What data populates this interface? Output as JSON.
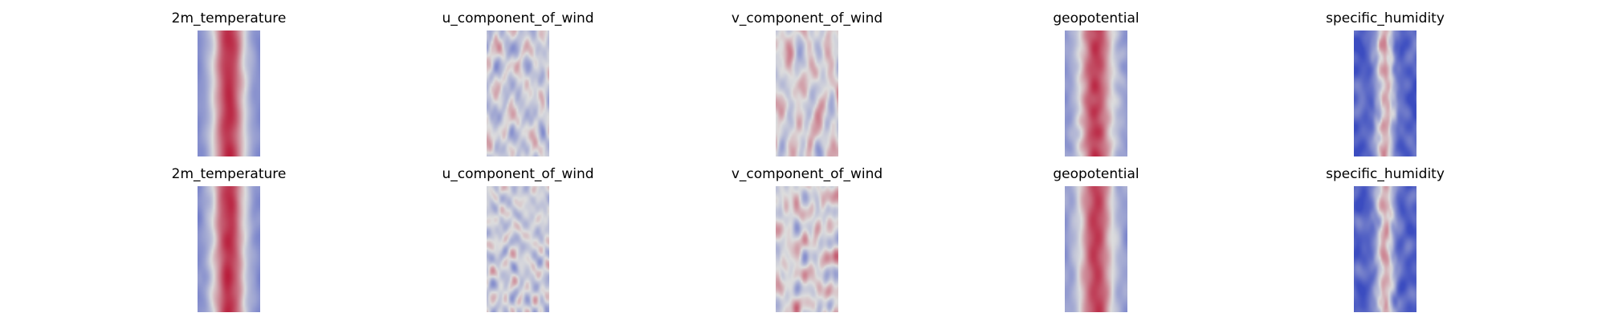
{
  "chart_data": {
    "type": "heatmap",
    "colormap": "coolwarm",
    "colors": {
      "low": "#3b4cc0",
      "mid": "#dddddd",
      "high": "#b40426"
    },
    "axes_visible": false,
    "grid": false,
    "layout": {
      "rows": 2,
      "columns": 5
    },
    "panels": [
      {
        "title": "2m_temperature",
        "field": "temperature",
        "seed": 11
      },
      {
        "title": "u_component_of_wind",
        "field": "u_wind",
        "seed": 23
      },
      {
        "title": "v_component_of_wind",
        "field": "v_wind",
        "seed": 37
      },
      {
        "title": "geopotential",
        "field": "geopotential",
        "seed": 41
      },
      {
        "title": "specific_humidity",
        "field": "humidity",
        "seed": 53
      },
      {
        "title": "2m_temperature",
        "field": "temperature",
        "seed": 61
      },
      {
        "title": "u_component_of_wind",
        "field": "u_wind",
        "seed": 73
      },
      {
        "title": "v_component_of_wind",
        "field": "v_wind",
        "seed": 89
      },
      {
        "title": "geopotential",
        "field": "geopotential",
        "seed": 97
      },
      {
        "title": "specific_humidity",
        "field": "humidity",
        "seed": 101
      }
    ]
  }
}
